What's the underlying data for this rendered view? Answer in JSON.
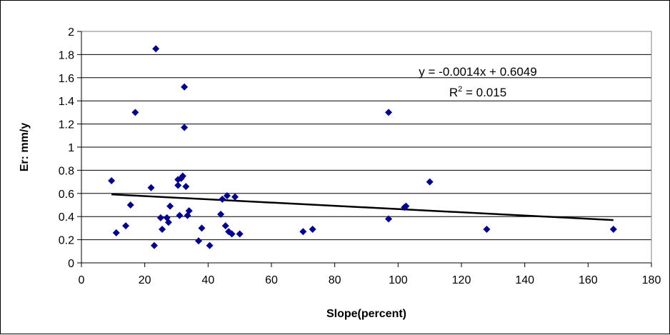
{
  "chart_data": {
    "type": "scatter",
    "xlabel": "Slope(percent)",
    "ylabel": "Er: mm/y",
    "xlim": [
      0,
      180
    ],
    "ylim": [
      0,
      2
    ],
    "xticks": [
      "0",
      "20",
      "40",
      "60",
      "80",
      "100",
      "120",
      "140",
      "160",
      "180"
    ],
    "yticks": [
      "0",
      "0.2",
      "0.4",
      "0.6",
      "0.8",
      "1",
      "1.2",
      "1.4",
      "1.6",
      "1.8",
      "2"
    ],
    "grid": "horizontal",
    "legend": "none",
    "marker_color": "#00008B",
    "trendline_color": "#000000",
    "trendline": {
      "slope": -0.0014,
      "intercept": 0.6049,
      "equation_text": "y = -0.0014x + 0.6049",
      "r2_label": "R",
      "r2_sup": "2",
      "r2_value": " = 0.015"
    },
    "points": [
      {
        "x": 9.5,
        "y": 0.71
      },
      {
        "x": 11,
        "y": 0.26
      },
      {
        "x": 14,
        "y": 0.32
      },
      {
        "x": 15.5,
        "y": 0.5
      },
      {
        "x": 17,
        "y": 1.3
      },
      {
        "x": 22,
        "y": 0.65
      },
      {
        "x": 23,
        "y": 0.15
      },
      {
        "x": 23.5,
        "y": 1.85
      },
      {
        "x": 25,
        "y": 0.39
      },
      {
        "x": 25.5,
        "y": 0.29
      },
      {
        "x": 27,
        "y": 0.39
      },
      {
        "x": 27.5,
        "y": 0.35
      },
      {
        "x": 28,
        "y": 0.49
      },
      {
        "x": 30.5,
        "y": 0.72
      },
      {
        "x": 30.5,
        "y": 0.67
      },
      {
        "x": 31,
        "y": 0.41
      },
      {
        "x": 31.5,
        "y": 0.73
      },
      {
        "x": 32,
        "y": 0.75
      },
      {
        "x": 32.5,
        "y": 1.52
      },
      {
        "x": 32.5,
        "y": 1.17
      },
      {
        "x": 33,
        "y": 0.66
      },
      {
        "x": 33.5,
        "y": 0.41
      },
      {
        "x": 34,
        "y": 0.45
      },
      {
        "x": 37,
        "y": 0.19
      },
      {
        "x": 38,
        "y": 0.3
      },
      {
        "x": 40.5,
        "y": 0.15
      },
      {
        "x": 44,
        "y": 0.42
      },
      {
        "x": 44.5,
        "y": 0.55
      },
      {
        "x": 45.5,
        "y": 0.32
      },
      {
        "x": 46,
        "y": 0.58
      },
      {
        "x": 46.5,
        "y": 0.27
      },
      {
        "x": 47.5,
        "y": 0.25
      },
      {
        "x": 48.5,
        "y": 0.57
      },
      {
        "x": 50,
        "y": 0.25
      },
      {
        "x": 70,
        "y": 0.27
      },
      {
        "x": 73,
        "y": 0.29
      },
      {
        "x": 97,
        "y": 1.3
      },
      {
        "x": 97,
        "y": 0.38
      },
      {
        "x": 102,
        "y": 0.48
      },
      {
        "x": 102.5,
        "y": 0.49
      },
      {
        "x": 110,
        "y": 0.7
      },
      {
        "x": 128,
        "y": 0.29
      },
      {
        "x": 168,
        "y": 0.29
      }
    ]
  }
}
